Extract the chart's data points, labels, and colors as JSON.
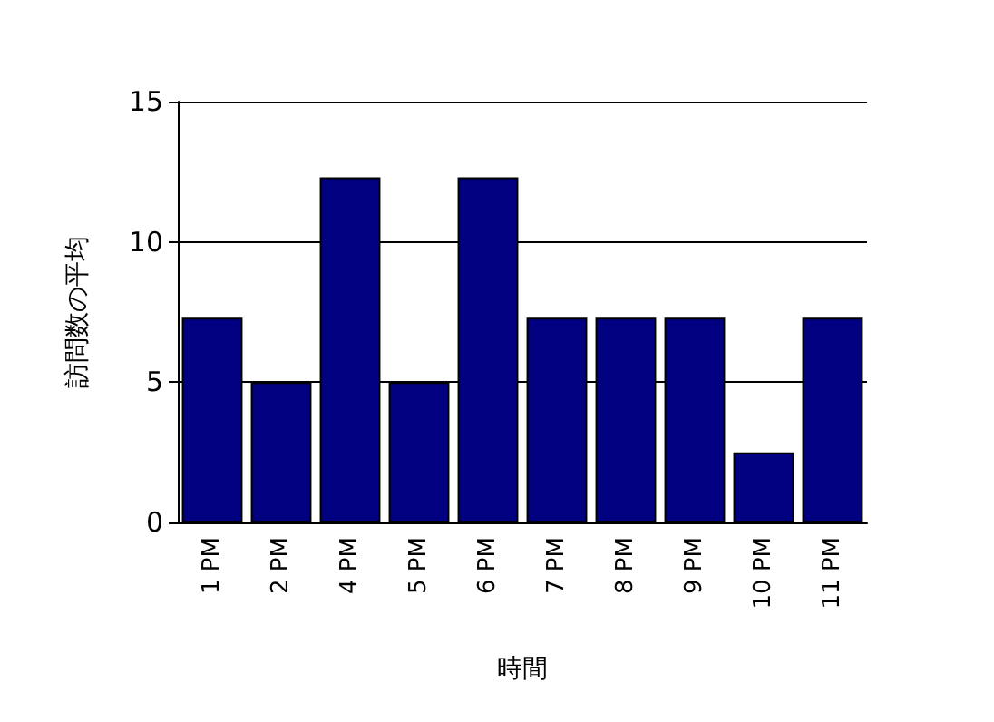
{
  "chart_data": {
    "type": "bar",
    "xlabel": "時間",
    "ylabel": "訪問数の平均",
    "categories": [
      "1 PM",
      "2 PM",
      "4 PM",
      "5 PM",
      "6 PM",
      "7 PM",
      "8 PM",
      "9 PM",
      "10 PM",
      "11 PM"
    ],
    "values": [
      7.3,
      5,
      12.3,
      5,
      12.3,
      7.3,
      7.3,
      7.3,
      2.5,
      7.3
    ],
    "color": "#000080",
    "ylim": [
      0,
      15
    ],
    "yticks": [
      0,
      5,
      10,
      15
    ],
    "grid": "y"
  }
}
